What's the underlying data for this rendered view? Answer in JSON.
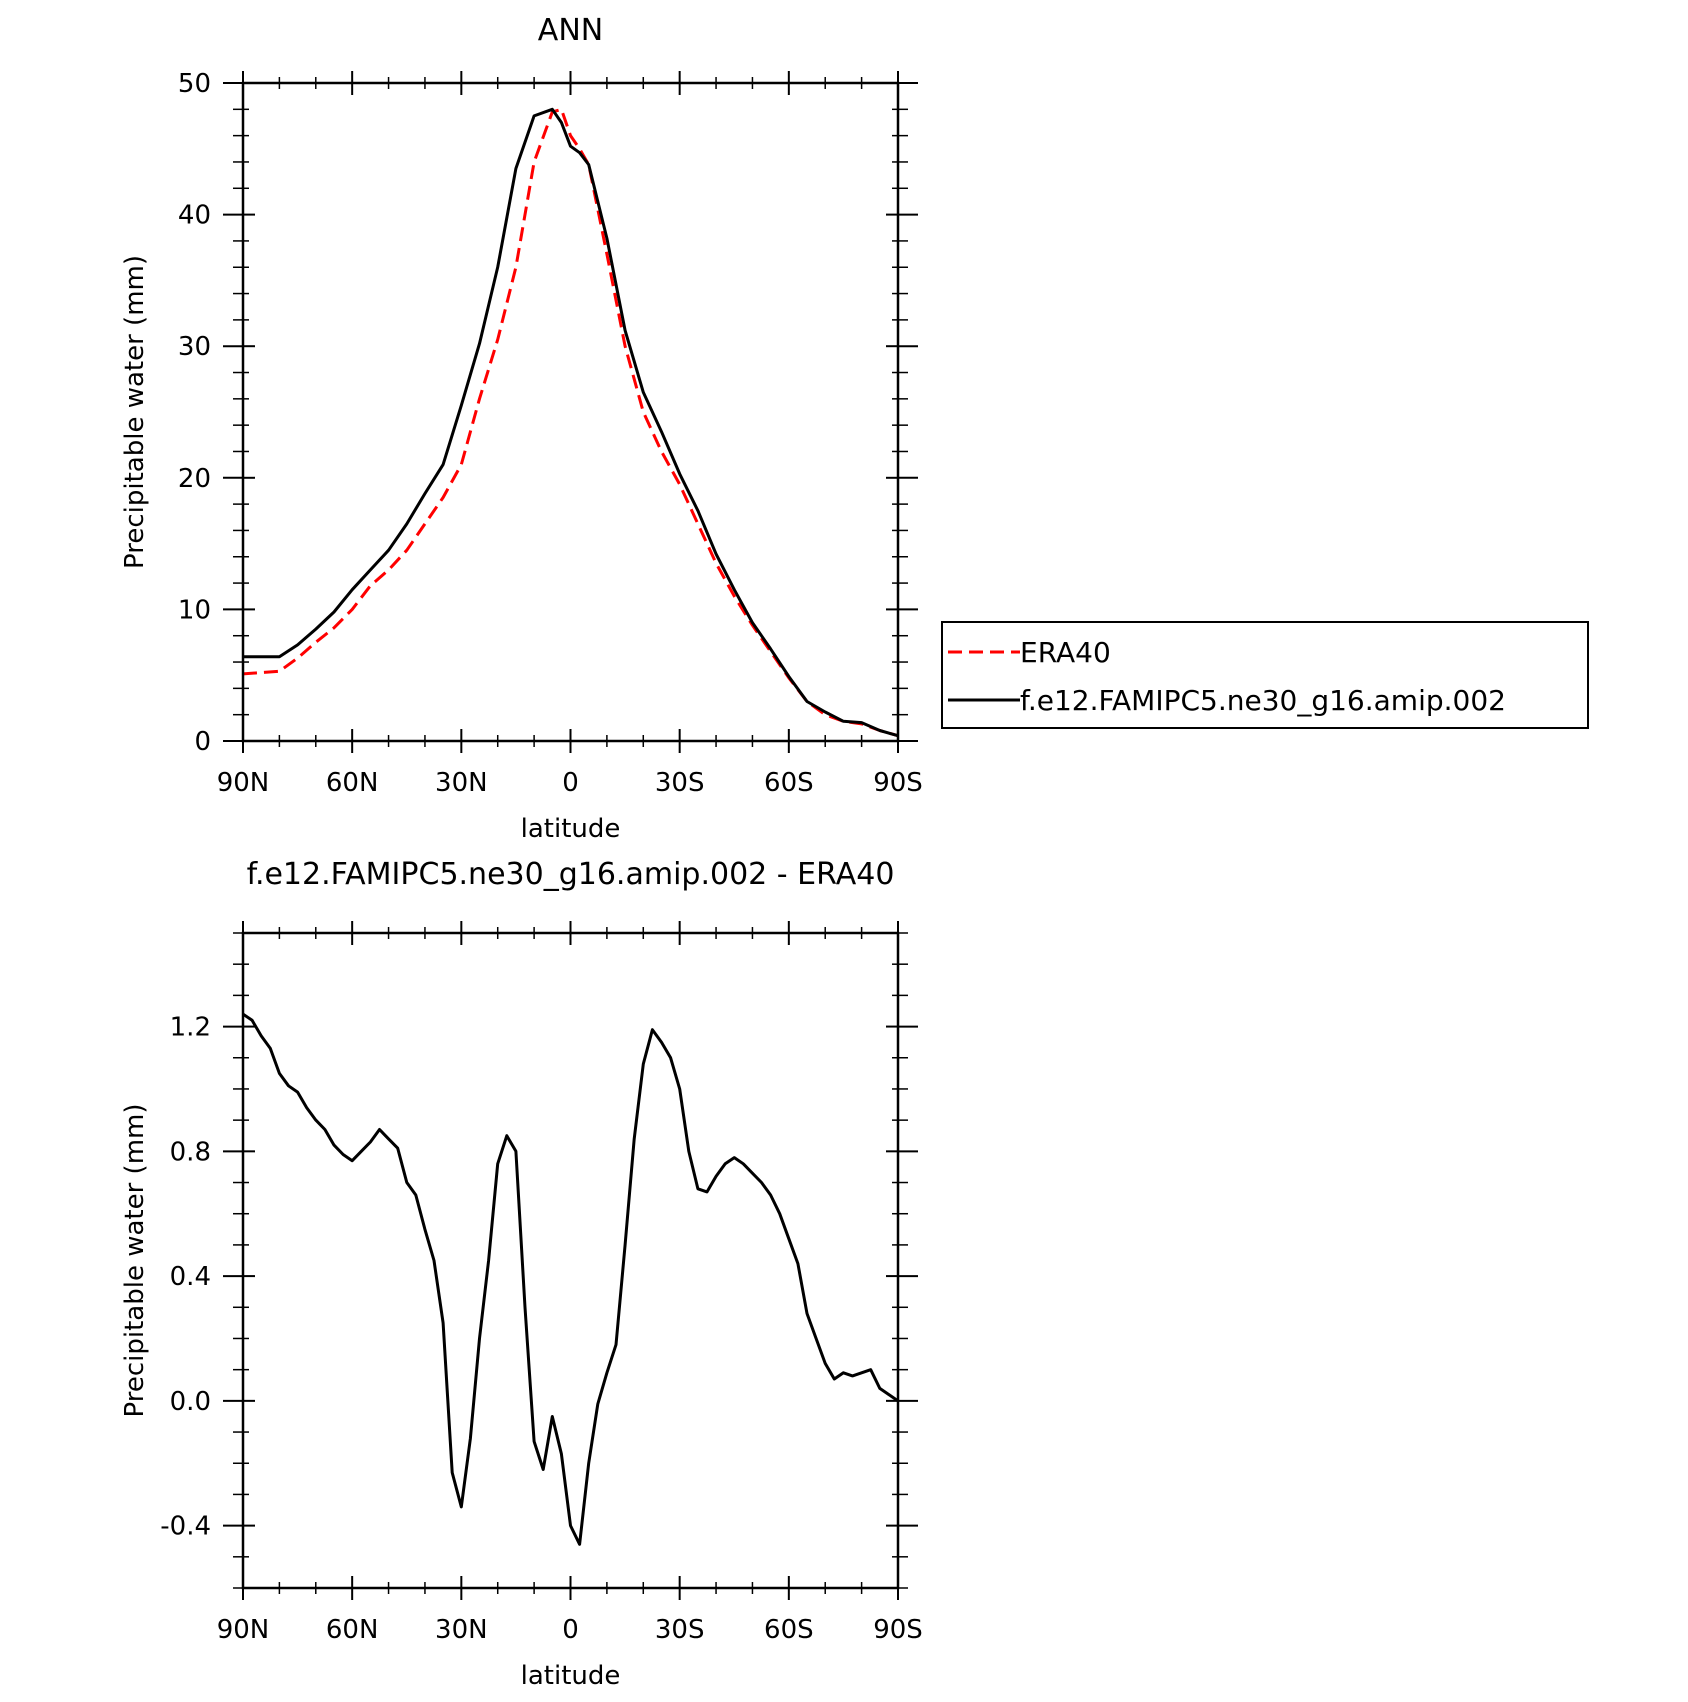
{
  "chart_data": [
    {
      "type": "line",
      "title": "ANN",
      "xlabel": "latitude",
      "ylabel": "Precipitable water (mm)",
      "xlim": [
        90,
        -90
      ],
      "ylim": [
        0,
        50
      ],
      "xticks": [
        90,
        60,
        30,
        0,
        -30,
        -60,
        -90
      ],
      "xtick_labels": [
        "90N",
        "60N",
        "30N",
        "0",
        "30S",
        "60S",
        "90S"
      ],
      "yticks": [
        0,
        10,
        20,
        30,
        40,
        50
      ],
      "ytick_labels": [
        "0",
        "10",
        "20",
        "30",
        "40",
        "50"
      ],
      "grid": false,
      "legend": "right",
      "series": [
        {
          "name": "ERA40",
          "color": "#ff0000",
          "dash": "dashed",
          "x": [
            90,
            80,
            75,
            70,
            65,
            60,
            55,
            50,
            45,
            40,
            35,
            30,
            25,
            20,
            15,
            10,
            5,
            2.5,
            0,
            -2.5,
            -5,
            -10,
            -15,
            -20,
            -25,
            -30,
            -35,
            -40,
            -45,
            -50,
            -55,
            -60,
            -65,
            -70,
            -75,
            -80,
            -85,
            -90
          ],
          "y": [
            5.1,
            5.3,
            6.3,
            7.5,
            8.6,
            10.0,
            11.8,
            13.0,
            14.5,
            16.5,
            18.5,
            21.0,
            26.0,
            30.5,
            36.0,
            44.0,
            47.8,
            48.0,
            46.0,
            45.0,
            43.8,
            37.0,
            30.0,
            25.0,
            22.0,
            19.5,
            16.5,
            13.5,
            11.0,
            8.8,
            6.8,
            4.8,
            3.0,
            2.0,
            1.5,
            1.3,
            0.8,
            0.4
          ]
        },
        {
          "name": "f.e12.FAMIPC5.ne30_g16.amip.002",
          "color": "#000000",
          "dash": "solid",
          "x": [
            90,
            85,
            80,
            75,
            70,
            65,
            60,
            55,
            50,
            45,
            40,
            35,
            30,
            25,
            20,
            15,
            10,
            5,
            2.5,
            0,
            -2.5,
            -5,
            -10,
            -15,
            -20,
            -25,
            -30,
            -35,
            -40,
            -45,
            -50,
            -55,
            -60,
            -65,
            -70,
            -75,
            -80,
            -85,
            -90
          ],
          "y": [
            6.4,
            6.4,
            6.4,
            7.3,
            8.5,
            9.8,
            11.5,
            13.0,
            14.5,
            16.5,
            18.8,
            21.0,
            25.5,
            30.2,
            36.0,
            43.5,
            47.5,
            48.0,
            47.0,
            45.2,
            44.7,
            43.8,
            38.2,
            31.2,
            26.5,
            23.5,
            20.3,
            17.5,
            14.2,
            11.5,
            9.0,
            7.0,
            4.9,
            3.0,
            2.2,
            1.5,
            1.4,
            0.8,
            0.4
          ]
        }
      ]
    },
    {
      "type": "line",
      "title": "f.e12.FAMIPC5.ne30_g16.amip.002 - ERA40",
      "xlabel": "latitude",
      "ylabel": "Precipitable water (mm)",
      "xlim": [
        90,
        -90
      ],
      "ylim": [
        -0.6,
        1.5
      ],
      "xticks": [
        90,
        60,
        30,
        0,
        -30,
        -60,
        -90
      ],
      "xtick_labels": [
        "90N",
        "60N",
        "30N",
        "0",
        "30S",
        "60S",
        "90S"
      ],
      "yticks": [
        -0.4,
        0,
        0.4,
        0.8,
        1.2
      ],
      "ytick_labels": [
        "-0.4",
        "0.0",
        "0.4",
        "0.8",
        "1.2"
      ],
      "grid": false,
      "series": [
        {
          "color": "#000000",
          "dash": "solid",
          "x": [
            90,
            87.5,
            85,
            82.5,
            80,
            77.5,
            75,
            72.5,
            70,
            67.5,
            65,
            62.5,
            60,
            57.5,
            55,
            52.5,
            50,
            47.5,
            45,
            42.5,
            40,
            37.5,
            35,
            32.5,
            30,
            27.5,
            25,
            22.5,
            20,
            17.5,
            15,
            12.5,
            10,
            7.5,
            5,
            2.5,
            0,
            -2.5,
            -5,
            -7.5,
            -10,
            -12.5,
            -15,
            -17.5,
            -20,
            -22.5,
            -25,
            -27.5,
            -30,
            -32.5,
            -35,
            -37.5,
            -40,
            -42.5,
            -45,
            -47.5,
            -50,
            -52.5,
            -55,
            -57.5,
            -60,
            -62.5,
            -65,
            -67.5,
            -70,
            -72.5,
            -75,
            -77.5,
            -80,
            -82.5,
            -85,
            -87.5,
            -90
          ],
          "y": [
            1.24,
            1.22,
            1.17,
            1.13,
            1.05,
            1.01,
            0.99,
            0.94,
            0.9,
            0.87,
            0.82,
            0.79,
            0.77,
            0.8,
            0.83,
            0.87,
            0.84,
            0.81,
            0.7,
            0.66,
            0.55,
            0.45,
            0.25,
            -0.23,
            -0.34,
            -0.12,
            0.2,
            0.45,
            0.76,
            0.85,
            0.8,
            0.3,
            -0.13,
            -0.22,
            -0.05,
            -0.17,
            -0.4,
            -0.46,
            -0.2,
            -0.01,
            0.09,
            0.18,
            0.5,
            0.84,
            1.08,
            1.19,
            1.15,
            1.1,
            1.0,
            0.8,
            0.68,
            0.67,
            0.72,
            0.76,
            0.78,
            0.76,
            0.73,
            0.7,
            0.66,
            0.6,
            0.52,
            0.44,
            0.28,
            0.2,
            0.12,
            0.07,
            0.09,
            0.08,
            0.09,
            0.1,
            0.04,
            0.02,
            0.0
          ]
        }
      ]
    }
  ]
}
